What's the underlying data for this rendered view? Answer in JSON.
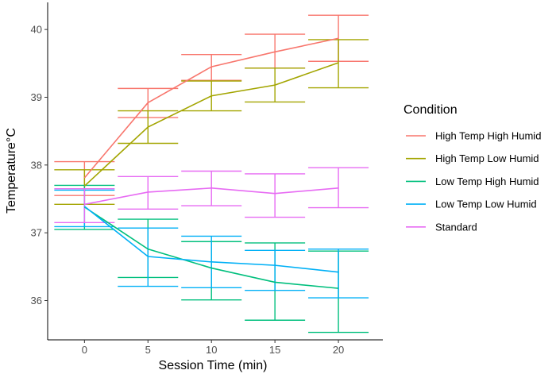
{
  "chart_data": {
    "type": "line",
    "title": "",
    "xlabel": "Session Time (min)",
    "ylabel": "Temperature°C",
    "x": [
      0,
      5,
      10,
      15,
      20
    ],
    "xlim": [
      -2.9,
      23.5
    ],
    "ylim": [
      35.42,
      40.4
    ],
    "xticks": [
      0,
      5,
      10,
      15,
      20
    ],
    "yticks": [
      36,
      37,
      38,
      39,
      40
    ],
    "legend_title": "Condition",
    "legend_position": "right",
    "grid": false,
    "error_bars": true,
    "series": [
      {
        "name": "High Temp High Humid",
        "color": "#F8766D",
        "values": [
          37.81,
          38.92,
          39.45,
          39.67,
          39.87
        ],
        "lower": [
          37.55,
          38.7,
          39.25,
          39.43,
          39.53
        ],
        "upper": [
          38.05,
          39.13,
          39.63,
          39.93,
          40.21
        ]
      },
      {
        "name": "High Temp Low Humid",
        "color": "#A3A500",
        "values": [
          37.69,
          38.56,
          39.02,
          39.18,
          39.51
        ],
        "lower": [
          37.42,
          38.32,
          38.8,
          38.93,
          39.14
        ],
        "upper": [
          37.93,
          38.8,
          39.24,
          39.43,
          39.85
        ]
      },
      {
        "name": "Low Temp High Humid",
        "color": "#00BF7D",
        "values": [
          37.38,
          36.76,
          36.48,
          36.27,
          36.18
        ],
        "lower": [
          37.05,
          36.34,
          36.01,
          35.71,
          35.53
        ],
        "upper": [
          37.7,
          37.2,
          36.87,
          36.85,
          36.73
        ]
      },
      {
        "name": "Low Temp Low Humid",
        "color": "#00B0F6",
        "values": [
          37.39,
          36.65,
          36.57,
          36.52,
          36.42
        ],
        "lower": [
          37.09,
          36.21,
          36.19,
          36.15,
          36.04
        ],
        "upper": [
          37.63,
          37.07,
          36.95,
          36.74,
          36.76
        ]
      },
      {
        "name": "Standard",
        "color": "#E76BF3",
        "values": [
          37.42,
          37.6,
          37.66,
          37.58,
          37.66
        ],
        "lower": [
          37.15,
          37.35,
          37.4,
          37.23,
          37.37
        ],
        "upper": [
          37.65,
          37.83,
          37.91,
          37.87,
          37.96
        ]
      }
    ]
  }
}
